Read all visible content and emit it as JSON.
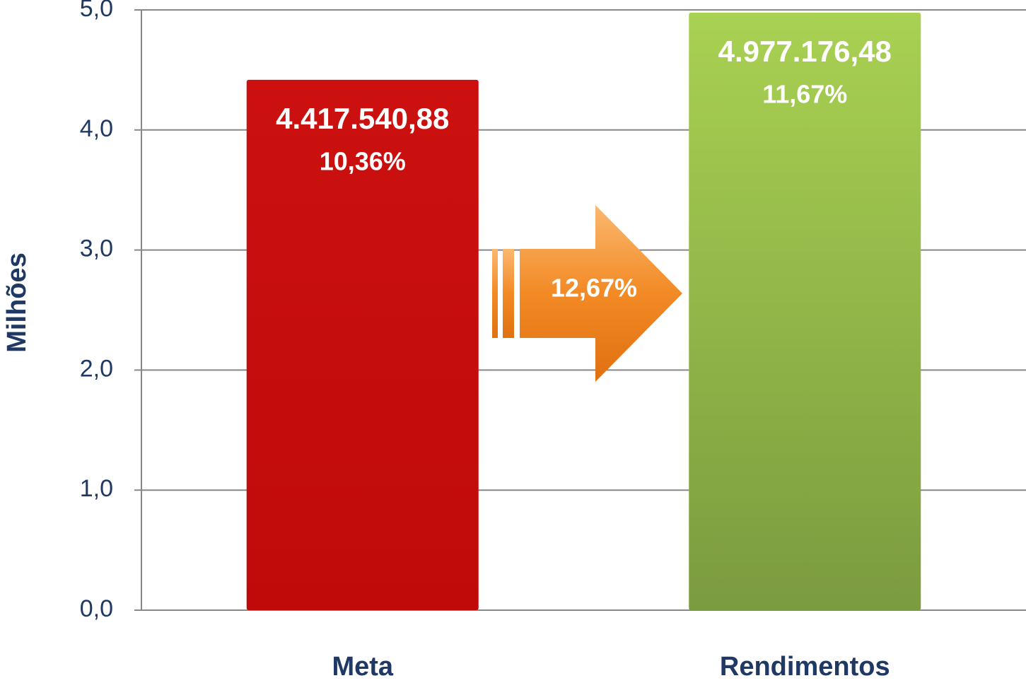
{
  "chart_data": {
    "type": "bar",
    "y_axis_label": "Milhões",
    "categories": [
      "Meta",
      "Rendimentos"
    ],
    "values": [
      4.41754088,
      4.97717648
    ],
    "value_labels": [
      "4.417.540,88",
      "4.977.176,48"
    ],
    "percent_labels": [
      "10,36%",
      "11,67%"
    ],
    "arrow_label": "12,67%",
    "colors": [
      "#c80c0c",
      "#93bb48"
    ],
    "ylim": [
      0,
      5
    ],
    "yticks": [
      {
        "value": 0,
        "label": "0,0"
      },
      {
        "value": 1,
        "label": "1,0"
      },
      {
        "value": 2,
        "label": "2,0"
      },
      {
        "value": 3,
        "label": "3,0"
      },
      {
        "value": 4,
        "label": "4,0"
      },
      {
        "value": 5,
        "label": "5,0"
      }
    ],
    "grid": true
  }
}
